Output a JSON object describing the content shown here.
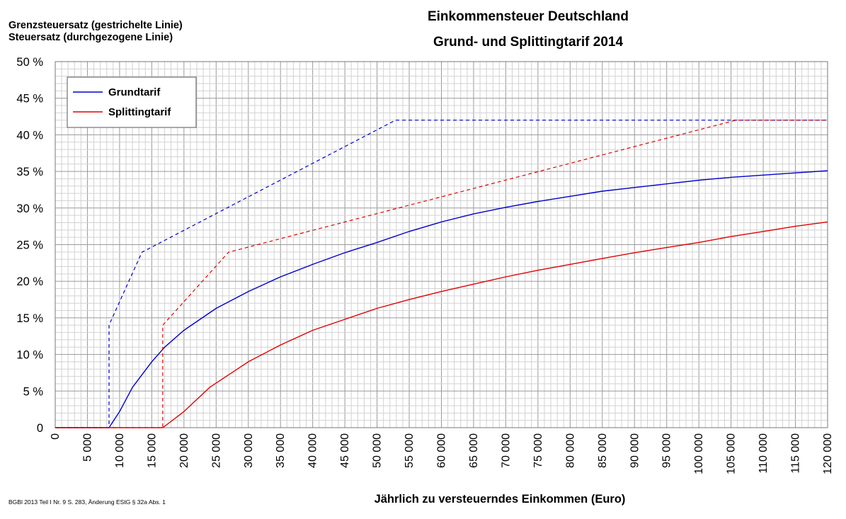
{
  "chart_data": {
    "type": "line",
    "title": "Einkommensteuer Deutschland",
    "subtitle": "Grund- und Splittingtarif 2014",
    "ylabel_lines": [
      "Grenzsteuersatz (gestrichelte Linie)",
      "Steuersatz (durchgezogene Linie)"
    ],
    "xlabel": "Jährlich zu versteuerndes Einkommen (Euro)",
    "source_note": "BGBl 2013 Teil I Nr. 9 S. 283, Änderung EStG § 32a Abs. 1",
    "xlim": [
      0,
      120000
    ],
    "ylim": [
      0,
      50
    ],
    "grid": true,
    "legend_position": "top-left",
    "x_ticks": [
      0,
      5000,
      10000,
      15000,
      20000,
      25000,
      30000,
      35000,
      40000,
      45000,
      50000,
      55000,
      60000,
      65000,
      70000,
      75000,
      80000,
      85000,
      90000,
      95000,
      100000,
      105000,
      110000,
      115000,
      120000
    ],
    "x_tick_labels": [
      "0",
      "5 000",
      "10 000",
      "15 000",
      "20 000",
      "25 000",
      "30 000",
      "35 000",
      "40 000",
      "45 000",
      "50 000",
      "55 000",
      "60 000",
      "65 000",
      "70 000",
      "75 000",
      "80 000",
      "85 000",
      "90 000",
      "95 000",
      "100 000",
      "105 000",
      "110 000",
      "115 000",
      "120 000"
    ],
    "y_ticks": [
      0,
      5,
      10,
      15,
      20,
      25,
      30,
      35,
      40,
      45,
      50
    ],
    "y_tick_labels": [
      "0",
      "5 %",
      "10 %",
      "15 %",
      "20 %",
      "25 %",
      "30 %",
      "35 %",
      "40 %",
      "45 %",
      "50 %"
    ],
    "series": [
      {
        "name": "Grundtarif",
        "color": "#0000cc",
        "marginal_rate": [
          {
            "x": 0,
            "y": 0
          },
          {
            "x": 8354,
            "y": 0
          },
          {
            "x": 8354,
            "y": 14
          },
          {
            "x": 13469,
            "y": 23.97
          },
          {
            "x": 52881,
            "y": 42
          },
          {
            "x": 120000,
            "y": 42
          }
        ],
        "average_rate": [
          {
            "x": 0,
            "y": 0
          },
          {
            "x": 8354,
            "y": 0
          },
          {
            "x": 10000,
            "y": 2.2
          },
          {
            "x": 12000,
            "y": 5.5
          },
          {
            "x": 15000,
            "y": 9.0
          },
          {
            "x": 17000,
            "y": 11.0
          },
          {
            "x": 20000,
            "y": 13.3
          },
          {
            "x": 25000,
            "y": 16.3
          },
          {
            "x": 30000,
            "y": 18.6
          },
          {
            "x": 35000,
            "y": 20.6
          },
          {
            "x": 40000,
            "y": 22.3
          },
          {
            "x": 45000,
            "y": 23.9
          },
          {
            "x": 50000,
            "y": 25.3
          },
          {
            "x": 55000,
            "y": 26.8
          },
          {
            "x": 60000,
            "y": 28.1
          },
          {
            "x": 65000,
            "y": 29.2
          },
          {
            "x": 70000,
            "y": 30.1
          },
          {
            "x": 75000,
            "y": 30.9
          },
          {
            "x": 80000,
            "y": 31.6
          },
          {
            "x": 85000,
            "y": 32.3
          },
          {
            "x": 90000,
            "y": 32.8
          },
          {
            "x": 95000,
            "y": 33.3
          },
          {
            "x": 100000,
            "y": 33.8
          },
          {
            "x": 105000,
            "y": 34.2
          },
          {
            "x": 110000,
            "y": 34.5
          },
          {
            "x": 115000,
            "y": 34.8
          },
          {
            "x": 120000,
            "y": 35.1
          }
        ]
      },
      {
        "name": "Splittingtarif",
        "color": "#e00000",
        "marginal_rate": [
          {
            "x": 0,
            "y": 0
          },
          {
            "x": 16708,
            "y": 0
          },
          {
            "x": 16708,
            "y": 14
          },
          {
            "x": 26938,
            "y": 23.97
          },
          {
            "x": 105762,
            "y": 42
          },
          {
            "x": 120000,
            "y": 42
          }
        ],
        "average_rate": [
          {
            "x": 0,
            "y": 0
          },
          {
            "x": 16708,
            "y": 0
          },
          {
            "x": 20000,
            "y": 2.2
          },
          {
            "x": 24000,
            "y": 5.5
          },
          {
            "x": 30000,
            "y": 9.0
          },
          {
            "x": 35000,
            "y": 11.3
          },
          {
            "x": 40000,
            "y": 13.3
          },
          {
            "x": 45000,
            "y": 14.8
          },
          {
            "x": 50000,
            "y": 16.3
          },
          {
            "x": 55000,
            "y": 17.5
          },
          {
            "x": 60000,
            "y": 18.6
          },
          {
            "x": 65000,
            "y": 19.6
          },
          {
            "x": 70000,
            "y": 20.6
          },
          {
            "x": 75000,
            "y": 21.5
          },
          {
            "x": 80000,
            "y": 22.3
          },
          {
            "x": 85000,
            "y": 23.1
          },
          {
            "x": 90000,
            "y": 23.9
          },
          {
            "x": 95000,
            "y": 24.6
          },
          {
            "x": 100000,
            "y": 25.3
          },
          {
            "x": 105000,
            "y": 26.1
          },
          {
            "x": 110000,
            "y": 26.8
          },
          {
            "x": 115000,
            "y": 27.5
          },
          {
            "x": 120000,
            "y": 28.1
          }
        ]
      }
    ]
  }
}
